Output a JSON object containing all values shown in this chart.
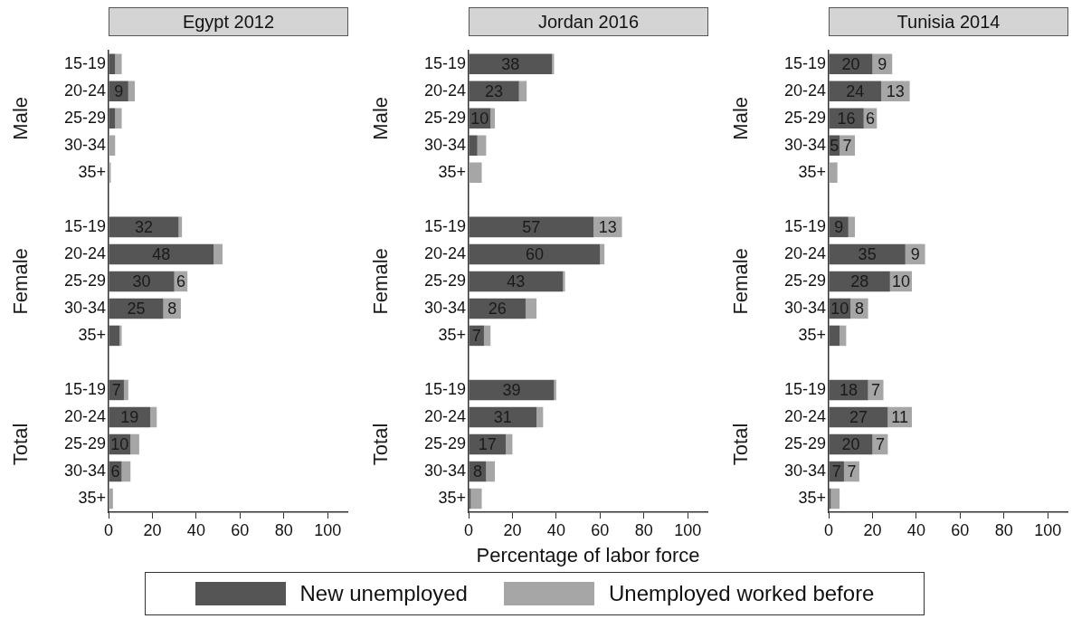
{
  "chart_data": [
    {
      "type": "bar",
      "orientation": "horizontal",
      "stacked": true,
      "title": "Egypt 2012",
      "categories": [
        "15-19",
        "20-24",
        "25-29",
        "30-34",
        "35+",
        null,
        "15-19",
        "20-24",
        "25-29",
        "30-34",
        "35+",
        null,
        "15-19",
        "20-24",
        "25-29",
        "30-34",
        "35+"
      ],
      "annotations": [
        "Male",
        "Female",
        "Total"
      ],
      "series": [
        {
          "color": "#555555",
          "values": [
            3,
            9,
            3,
            0,
            0,
            null,
            32,
            48,
            30,
            25,
            5,
            null,
            7,
            19,
            10,
            6,
            0
          ],
          "value_labels": [
            null,
            "9",
            null,
            null,
            null,
            null,
            "32",
            "48",
            "30",
            "25",
            null,
            null,
            "7",
            "19",
            "10",
            "6",
            null
          ]
        },
        {
          "color": "#a6a6a6",
          "values": [
            3,
            3,
            3,
            3,
            1,
            null,
            1.5,
            4,
            6,
            8,
            1,
            null,
            2,
            3,
            4,
            4,
            2
          ],
          "value_labels": [
            null,
            null,
            null,
            null,
            null,
            null,
            null,
            null,
            "6",
            "8",
            null,
            null,
            null,
            null,
            null,
            null,
            null
          ]
        }
      ],
      "xlim": [
        0,
        109
      ],
      "xticks": [
        0,
        20,
        40,
        60,
        80,
        100
      ],
      "grid": false
    },
    {
      "type": "bar",
      "orientation": "horizontal",
      "stacked": true,
      "title": "Jordan 2016",
      "categories": [
        "15-19",
        "20-24",
        "25-29",
        "30-34",
        "35+",
        null,
        "15-19",
        "20-24",
        "25-29",
        "30-34",
        "35+",
        null,
        "15-19",
        "20-24",
        "25-29",
        "30-34",
        "35+"
      ],
      "annotations": [
        "Male",
        "Female",
        "Total"
      ],
      "xlabel": "Percentage of labor force",
      "series": [
        {
          "name": "New unemployed",
          "color": "#555555",
          "values": [
            38,
            23,
            10,
            4,
            0,
            null,
            57,
            60,
            43,
            26,
            7,
            null,
            39,
            31,
            17,
            8,
            1
          ],
          "value_labels": [
            "38",
            "23",
            "10",
            null,
            null,
            null,
            "57",
            "60",
            "43",
            "26",
            "7",
            null,
            "39",
            "31",
            "17",
            "8",
            null
          ]
        },
        {
          "name": "Unemployed worked before",
          "color": "#a6a6a6",
          "values": [
            1,
            3.5,
            2,
            4,
            6,
            null,
            13,
            2,
            1,
            5,
            3,
            null,
            1,
            3,
            3,
            4,
            5
          ],
          "value_labels": [
            null,
            null,
            null,
            null,
            null,
            null,
            "13",
            null,
            null,
            null,
            null,
            null,
            null,
            null,
            null,
            null,
            null
          ]
        }
      ],
      "xlim": [
        0,
        109
      ],
      "xticks": [
        0,
        20,
        40,
        60,
        80,
        100
      ],
      "grid": false,
      "legend": "bottom"
    },
    {
      "type": "bar",
      "orientation": "horizontal",
      "stacked": true,
      "title": "Tunisia 2014",
      "categories": [
        "15-19",
        "20-24",
        "25-29",
        "30-34",
        "35+",
        null,
        "15-19",
        "20-24",
        "25-29",
        "30-34",
        "35+",
        null,
        "15-19",
        "20-24",
        "25-29",
        "30-34",
        "35+"
      ],
      "annotations": [
        "Male",
        "Female",
        "Total"
      ],
      "series": [
        {
          "color": "#555555",
          "values": [
            20,
            24,
            16,
            5,
            0,
            null,
            9,
            35,
            28,
            10,
            5,
            null,
            18,
            27,
            20,
            7,
            1
          ],
          "value_labels": [
            "20",
            "24",
            "16",
            "5",
            null,
            null,
            "9",
            "35",
            "28",
            "10",
            null,
            null,
            "18",
            "27",
            "20",
            "7",
            null
          ]
        },
        {
          "color": "#a6a6a6",
          "values": [
            9,
            13,
            6,
            7,
            4,
            null,
            3,
            9,
            10,
            8,
            3,
            null,
            7,
            11,
            7,
            7,
            4
          ],
          "value_labels": [
            "9",
            "13",
            "6",
            "7",
            null,
            null,
            null,
            "9",
            "10",
            "8",
            null,
            null,
            "7",
            "11",
            "7",
            "7",
            null
          ]
        }
      ],
      "xlim": [
        0,
        109
      ],
      "xticks": [
        0,
        20,
        40,
        60,
        80,
        100
      ],
      "grid": false
    }
  ]
}
